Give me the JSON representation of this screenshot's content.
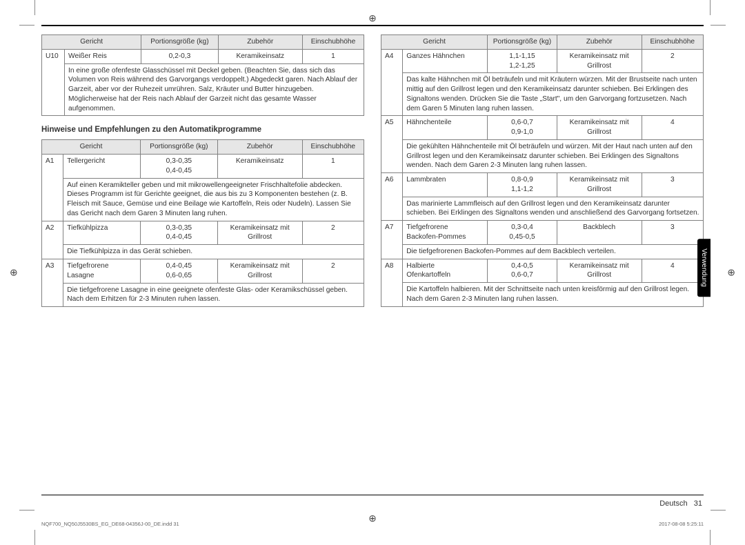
{
  "page": {
    "topRule": true,
    "sideTab": "Verwendung",
    "footerLang": "Deutsch",
    "footerPage": "31",
    "imprintLeft": "NQF700_NQ50J5530BS_EG_DE68-04356J-00_DE.indd   31",
    "imprintRight": "2017-08-08   5:25:11",
    "colors": {
      "headerBg": "#e6e6e6",
      "border": "#808080",
      "text": "#333333",
      "tabBg": "#000000",
      "tabText": "#ffffff"
    }
  },
  "headers": {
    "dish": "Gericht",
    "size": "Portionsgröße (kg)",
    "acc": "Zubehör",
    "lvl": "Einschubhöhe"
  },
  "tableU": {
    "rows": [
      {
        "code": "U10",
        "dish": "Weißer Reis",
        "size": "0,2-0,3",
        "acc": "Keramikeinsatz",
        "lvl": "1",
        "desc": "In eine große ofenfeste Glasschüssel mit Deckel geben. (Beachten Sie, dass sich das Volumen von Reis während des Garvorgangs verdoppelt.) Abgedeckt garen. Nach Ablauf der Garzeit, aber vor der Ruhezeit umrühren. Salz, Kräuter und Butter hinzugeben. Möglicherweise hat der Reis nach Ablauf der Garzeit nicht das gesamte Wasser aufgenommen."
      }
    ]
  },
  "sectionTitle": "Hinweise und Empfehlungen zu den Automatikprogramme",
  "tableA_left": {
    "rows": [
      {
        "code": "A1",
        "dish": "Tellergericht",
        "size": "0,3-0,35\n0,4-0,45",
        "acc": "Keramikeinsatz",
        "lvl": "1",
        "desc": "Auf einen Keramikteller geben und mit mikrowellengeeigneter Frischhaltefolie abdecken. Dieses Programm ist für Gerichte geeignet, die aus bis zu 3 Komponenten bestehen (z. B. Fleisch mit Sauce, Gemüse und eine Beilage wie Kartoffeln, Reis oder Nudeln). Lassen Sie das Gericht nach dem Garen 3 Minuten lang ruhen."
      },
      {
        "code": "A2",
        "dish": "Tiefkühlpizza",
        "size": "0,3-0,35\n0,4-0,45",
        "acc": "Keramikeinsatz mit\nGrillrost",
        "lvl": "2",
        "desc": "Die Tiefkühlpizza in das Gerät schieben."
      },
      {
        "code": "A3",
        "dish": "Tiefgefrorene\nLasagne",
        "size": "0,4-0,45\n0,6-0,65",
        "acc": "Keramikeinsatz mit\nGrillrost",
        "lvl": "2",
        "desc": "Die tiefgefrorene Lasagne in eine geeignete ofenfeste Glas- oder Keramikschüssel geben. Nach dem Erhitzen für 2-3 Minuten ruhen lassen."
      }
    ]
  },
  "tableA_right": {
    "rows": [
      {
        "code": "A4",
        "dish": "Ganzes Hähnchen",
        "size": "1,1-1,15\n1,2-1,25",
        "acc": "Keramikeinsatz mit\nGrillrost",
        "lvl": "2",
        "desc": "Das kalte Hähnchen mit Öl beträufeln und mit Kräutern würzen. Mit der Brustseite nach unten mittig auf den Grillrost legen und den Keramikeinsatz darunter schieben. Bei Erklingen des Signaltons wenden. Drücken Sie die Taste „Start\", um den Garvorgang fortzusetzen. Nach dem Garen 5 Minuten lang ruhen lassen."
      },
      {
        "code": "A5",
        "dish": "Hähnchenteile",
        "size": "0,6-0,7\n0,9-1,0",
        "acc": "Keramikeinsatz mit\nGrillrost",
        "lvl": "4",
        "desc": "Die gekühlten Hähnchenteile mit Öl beträufeln und würzen. Mit der Haut nach unten auf den Grillrost legen und den Keramikeinsatz darunter schieben. Bei Erklingen des Signaltons wenden. Nach dem Garen 2-3 Minuten lang ruhen lassen."
      },
      {
        "code": "A6",
        "dish": "Lammbraten",
        "size": "0,8-0,9\n1,1-1,2",
        "acc": "Keramikeinsatz mit\nGrillrost",
        "lvl": "3",
        "desc": "Das marinierte Lammfleisch auf den Grillrost legen und den Keramikeinsatz darunter schieben. Bei Erklingen des Signaltons wenden und anschließend des Garvorgang fortsetzen."
      },
      {
        "code": "A7",
        "dish": "Tiefgefrorene\nBackofen-Pommes",
        "size": "0,3-0,4\n0,45-0,5",
        "acc": "Backblech",
        "lvl": "3",
        "desc": "Die tiefgefrorenen Backofen-Pommes auf dem Backblech verteilen."
      },
      {
        "code": "A8",
        "dish": "Halbierte\nOfenkartoffeln",
        "size": "0,4-0,5\n0,6-0,7",
        "acc": "Keramikeinsatz mit\nGrillrost",
        "lvl": "4",
        "desc": "Die Kartoffeln halbieren. Mit der Schnittseite nach unten kreisförmig auf den Grillrost legen. Nach dem Garen 2-3 Minuten lang ruhen lassen."
      }
    ]
  }
}
